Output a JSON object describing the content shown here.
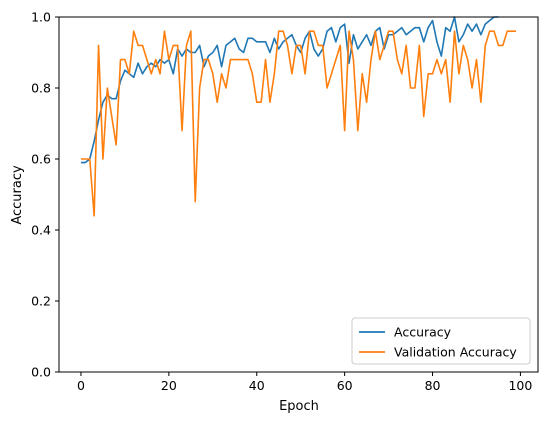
{
  "chart_data": {
    "type": "line",
    "title": "",
    "xlabel": "Epoch",
    "ylabel": "Accuracy",
    "xlim": [
      -5,
      104
    ],
    "ylim": [
      0.0,
      1.0
    ],
    "x_ticks": [
      0,
      20,
      40,
      60,
      80,
      100
    ],
    "x_tick_labels": [
      "0",
      "20",
      "40",
      "60",
      "80",
      "100"
    ],
    "y_ticks": [
      0.0,
      0.2,
      0.4,
      0.6,
      0.8,
      1.0
    ],
    "y_tick_labels": [
      "0.0",
      "0.2",
      "0.4",
      "0.6",
      "0.8",
      "1.0"
    ],
    "grid": false,
    "legend_position": "lower-right",
    "series": [
      {
        "name": "Accuracy",
        "color": "#1f77b4",
        "values": [
          0.59,
          0.59,
          0.6,
          0.65,
          0.71,
          0.76,
          0.78,
          0.77,
          0.77,
          0.82,
          0.85,
          0.84,
          0.83,
          0.87,
          0.84,
          0.86,
          0.87,
          0.86,
          0.88,
          0.87,
          0.88,
          0.84,
          0.91,
          0.89,
          0.91,
          0.9,
          0.9,
          0.92,
          0.86,
          0.89,
          0.9,
          0.92,
          0.86,
          0.92,
          0.93,
          0.94,
          0.91,
          0.9,
          0.94,
          0.94,
          0.93,
          0.93,
          0.93,
          0.9,
          0.94,
          0.91,
          0.93,
          0.94,
          0.95,
          0.92,
          0.9,
          0.94,
          0.96,
          0.91,
          0.89,
          0.91,
          0.96,
          0.97,
          0.93,
          0.97,
          0.98,
          0.87,
          0.95,
          0.91,
          0.93,
          0.95,
          0.92,
          0.96,
          0.97,
          0.91,
          0.95,
          0.95,
          0.96,
          0.97,
          0.95,
          0.96,
          0.97,
          0.97,
          0.93,
          0.97,
          0.99,
          0.93,
          0.89,
          0.97,
          0.96,
          1.0,
          0.93,
          0.95,
          0.98,
          0.96,
          0.98,
          0.95,
          0.98,
          0.99,
          1.0,
          1.0
        ]
      },
      {
        "name": "Validation Accuracy",
        "color": "#ff7f0e",
        "values": [
          0.6,
          0.6,
          0.6,
          0.44,
          0.92,
          0.6,
          0.8,
          0.72,
          0.64,
          0.88,
          0.88,
          0.84,
          0.96,
          0.92,
          0.92,
          0.88,
          0.84,
          0.88,
          0.84,
          0.96,
          0.88,
          0.92,
          0.92,
          0.68,
          0.92,
          0.96,
          0.48,
          0.8,
          0.88,
          0.88,
          0.84,
          0.76,
          0.84,
          0.8,
          0.88,
          0.88,
          0.88,
          0.88,
          0.88,
          0.84,
          0.76,
          0.76,
          0.88,
          0.76,
          0.84,
          0.96,
          0.96,
          0.92,
          0.84,
          0.92,
          0.92,
          0.84,
          0.96,
          0.96,
          0.92,
          0.92,
          0.8,
          0.84,
          0.88,
          0.92,
          0.68,
          0.96,
          0.88,
          0.68,
          0.84,
          0.76,
          0.88,
          0.96,
          0.88,
          0.92,
          0.96,
          0.96,
          0.88,
          0.84,
          0.92,
          0.8,
          0.8,
          0.92,
          0.72,
          0.84,
          0.84,
          0.88,
          0.84,
          0.88,
          0.76,
          0.96,
          0.84,
          0.92,
          0.88,
          0.8,
          0.88,
          0.76,
          0.92,
          0.96,
          0.96,
          0.92,
          0.92,
          0.96,
          0.96,
          0.96
        ]
      }
    ]
  }
}
